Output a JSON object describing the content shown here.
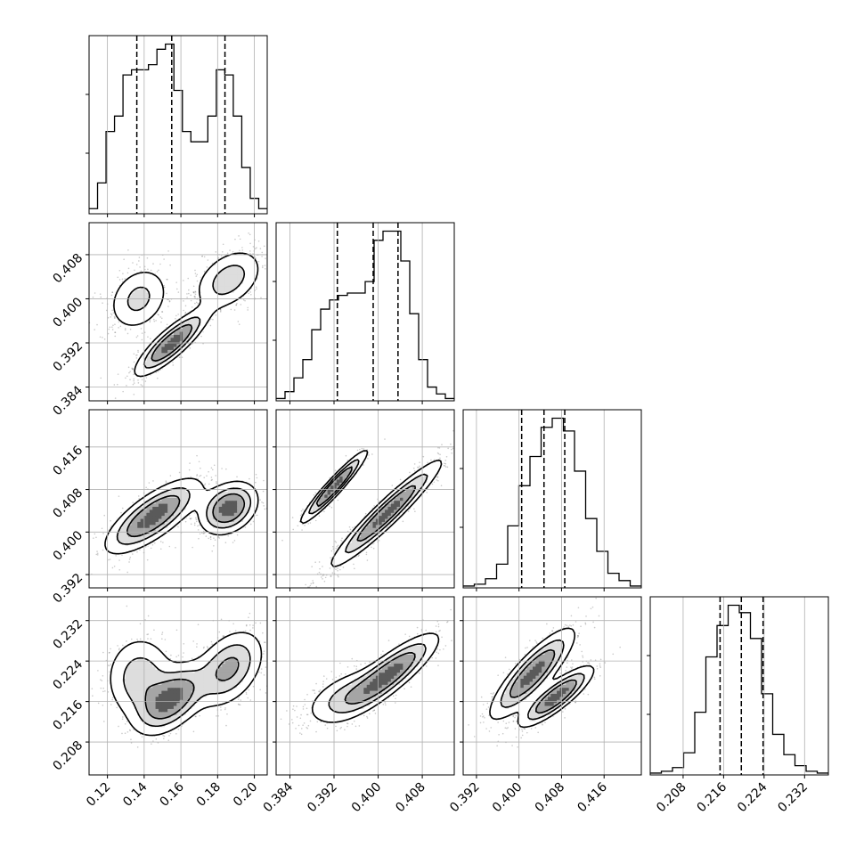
{
  "figure": {
    "type": "corner-plot",
    "background": "#ffffff",
    "colors": {
      "ink": "#000000",
      "grid": "#b0b0b0",
      "scatter": "#666666"
    }
  },
  "chart_data": {
    "type": "corner",
    "grid": true,
    "dims": [
      {
        "range": [
          0.11,
          0.207
        ],
        "ticks": [
          "0.12",
          "0.14",
          "0.16",
          "0.18",
          "0.20"
        ],
        "tick_values": [
          0.12,
          0.14,
          0.16,
          0.18,
          0.2
        ],
        "quantiles": [
          0.136,
          0.155,
          0.184
        ],
        "hist_edges_range": [
          0.11,
          0.207
        ],
        "hist_counts": [
          1,
          6,
          16,
          19,
          27,
          28,
          28,
          29,
          32,
          33,
          24,
          16,
          14,
          14,
          19,
          28,
          27,
          19,
          9,
          3,
          1
        ]
      },
      {
        "range": [
          0.3815,
          0.4138
        ],
        "ticks": [
          "0.384",
          "0.392",
          "0.400",
          "0.408"
        ],
        "tick_values": [
          0.384,
          0.392,
          0.4,
          0.408
        ],
        "quantiles": [
          0.3926,
          0.3991,
          0.4036
        ],
        "hist_edges_range": [
          0.3815,
          0.4138
        ],
        "hist_counts": [
          1,
          4,
          10,
          18,
          31,
          40,
          44,
          46,
          47,
          47,
          52,
          70,
          74,
          74,
          61,
          38,
          18,
          6,
          3,
          1
        ]
      },
      {
        "range": [
          0.3895,
          0.423
        ],
        "ticks": [
          "0.392",
          "0.400",
          "0.408",
          "0.416"
        ],
        "tick_values": [
          0.392,
          0.4,
          0.408,
          0.416
        ],
        "quantiles": [
          0.4005,
          0.4047,
          0.4086
        ],
        "hist_edges_range": [
          0.3895,
          0.423
        ],
        "hist_counts": [
          1,
          2,
          5,
          13,
          34,
          56,
          72,
          88,
          93,
          86,
          64,
          38,
          20,
          8,
          4,
          1
        ]
      },
      {
        "range": [
          0.2015,
          0.2367
        ],
        "ticks": [
          "0.208",
          "0.216",
          "0.224",
          "0.232"
        ],
        "tick_values": [
          0.208,
          0.216,
          0.224,
          0.232
        ],
        "quantiles": [
          0.2153,
          0.2195,
          0.2238
        ],
        "hist_edges_range": [
          0.2015,
          0.2367
        ],
        "hist_counts": [
          1,
          2,
          4,
          12,
          34,
          64,
          81,
          92,
          88,
          74,
          44,
          22,
          11,
          5,
          2,
          1
        ]
      }
    ],
    "pair_modes": [
      {
        "pair": [
          0,
          1
        ],
        "components": [
          {
            "mean": [
              0.137,
              0.4
            ],
            "sd": [
              0.009,
              0.0032
            ],
            "rho": 0.25,
            "weight": 0.28
          },
          {
            "mean": [
              0.155,
              0.392
            ],
            "sd": [
              0.01,
              0.003
            ],
            "rho": 0.85,
            "weight": 0.4
          },
          {
            "mean": [
              0.186,
              0.4035
            ],
            "sd": [
              0.01,
              0.003
            ],
            "rho": 0.4,
            "weight": 0.32
          }
        ]
      },
      {
        "pair": [
          0,
          2
        ],
        "components": [
          {
            "mean": [
              0.145,
              0.403
            ],
            "sd": [
              0.013,
              0.0035
            ],
            "rho": 0.75,
            "weight": 0.62
          },
          {
            "mean": [
              0.186,
              0.4045
            ],
            "sd": [
              0.008,
              0.0025
            ],
            "rho": 0.3,
            "weight": 0.38
          }
        ]
      },
      {
        "pair": [
          1,
          2
        ],
        "components": [
          {
            "mean": [
              0.392,
              0.4085
            ],
            "sd": [
              0.003,
              0.0034
            ],
            "rho": 0.95,
            "weight": 0.3
          },
          {
            "mean": [
              0.4015,
              0.4035
            ],
            "sd": [
              0.005,
              0.005
            ],
            "rho": 0.95,
            "weight": 0.7
          }
        ]
      },
      {
        "pair": [
          0,
          3
        ],
        "components": [
          {
            "mean": [
              0.138,
              0.2205
            ],
            "sd": [
              0.01,
              0.0045
            ],
            "rho": 0.0,
            "weight": 0.3
          },
          {
            "mean": [
              0.155,
              0.2165
            ],
            "sd": [
              0.01,
              0.0035
            ],
            "rho": 0.5,
            "weight": 0.38
          },
          {
            "mean": [
              0.186,
              0.2225
            ],
            "sd": [
              0.01,
              0.004
            ],
            "rho": 0.4,
            "weight": 0.32
          }
        ]
      },
      {
        "pair": [
          1,
          3
        ],
        "components": [
          {
            "mean": [
              0.394,
              0.217
            ],
            "sd": [
              0.004,
              0.003
            ],
            "rho": 0.55,
            "weight": 0.3
          },
          {
            "mean": [
              0.402,
              0.2215
            ],
            "sd": [
              0.0045,
              0.004
            ],
            "rho": 0.85,
            "weight": 0.7
          }
        ]
      },
      {
        "pair": [
          2,
          3
        ],
        "components": [
          {
            "mean": [
              0.4025,
              0.2215
            ],
            "sd": [
              0.004,
              0.0045
            ],
            "rho": 0.85,
            "weight": 0.62
          },
          {
            "mean": [
              0.407,
              0.217
            ],
            "sd": [
              0.0035,
              0.003
            ],
            "rho": 0.85,
            "weight": 0.38
          }
        ]
      }
    ]
  }
}
